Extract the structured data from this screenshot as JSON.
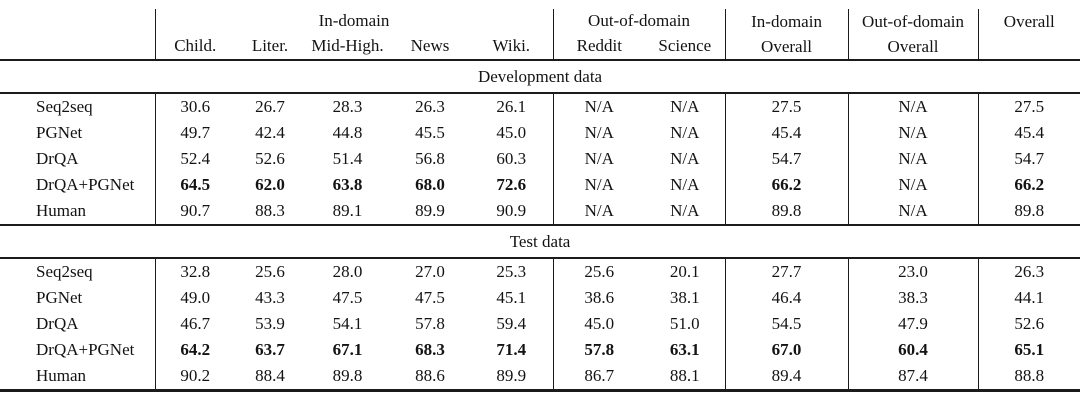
{
  "table": {
    "header": {
      "groups": {
        "in_domain": "In-domain",
        "out_of_domain": "Out-of-domain"
      },
      "columns": [
        "Child.",
        "Liter.",
        "Mid-High.",
        "News",
        "Wiki.",
        "Reddit",
        "Science"
      ],
      "in_domain_overall": [
        "In-domain",
        "Overall"
      ],
      "out_of_domain_overall": [
        "Out-of-domain",
        "Overall"
      ],
      "overall": "Overall"
    },
    "na_label": "N/A",
    "sections": [
      {
        "title": "Development data",
        "rows": [
          {
            "model": "Seq2seq",
            "values": [
              "30.6",
              "26.7",
              "28.3",
              "26.3",
              "26.1",
              "N/A",
              "N/A",
              "27.5",
              "N/A",
              "27.5"
            ],
            "bold_values": false
          },
          {
            "model": "PGNet",
            "values": [
              "49.7",
              "42.4",
              "44.8",
              "45.5",
              "45.0",
              "N/A",
              "N/A",
              "45.4",
              "N/A",
              "45.4"
            ],
            "bold_values": false
          },
          {
            "model": "DrQA",
            "values": [
              "52.4",
              "52.6",
              "51.4",
              "56.8",
              "60.3",
              "N/A",
              "N/A",
              "54.7",
              "N/A",
              "54.7"
            ],
            "bold_values": false
          },
          {
            "model": "DrQA+PGNet",
            "values": [
              "64.5",
              "62.0",
              "63.8",
              "68.0",
              "72.6",
              "N/A",
              "N/A",
              "66.2",
              "N/A",
              "66.2"
            ],
            "bold_values": true
          },
          {
            "model": "Human",
            "values": [
              "90.7",
              "88.3",
              "89.1",
              "89.9",
              "90.9",
              "N/A",
              "N/A",
              "89.8",
              "N/A",
              "89.8"
            ],
            "bold_values": false
          }
        ]
      },
      {
        "title": "Test data",
        "rows": [
          {
            "model": "Seq2seq",
            "values": [
              "32.8",
              "25.6",
              "28.0",
              "27.0",
              "25.3",
              "25.6",
              "20.1",
              "27.7",
              "23.0",
              "26.3"
            ],
            "bold_values": false
          },
          {
            "model": "PGNet",
            "values": [
              "49.0",
              "43.3",
              "47.5",
              "47.5",
              "45.1",
              "38.6",
              "38.1",
              "46.4",
              "38.3",
              "44.1"
            ],
            "bold_values": false
          },
          {
            "model": "DrQA",
            "values": [
              "46.7",
              "53.9",
              "54.1",
              "57.8",
              "59.4",
              "45.0",
              "51.0",
              "54.5",
              "47.9",
              "52.6"
            ],
            "bold_values": false
          },
          {
            "model": "DrQA+PGNet",
            "values": [
              "64.2",
              "63.7",
              "67.1",
              "68.3",
              "71.4",
              "57.8",
              "63.1",
              "67.0",
              "60.4",
              "65.1"
            ],
            "bold_values": true
          },
          {
            "model": "Human",
            "values": [
              "90.2",
              "88.4",
              "89.8",
              "88.6",
              "89.9",
              "86.7",
              "88.1",
              "89.4",
              "87.4",
              "88.8"
            ],
            "bold_values": false
          }
        ]
      }
    ]
  },
  "colors": {
    "background": "#ffffff",
    "text": "#131313",
    "rule": "#1b1b1b"
  }
}
